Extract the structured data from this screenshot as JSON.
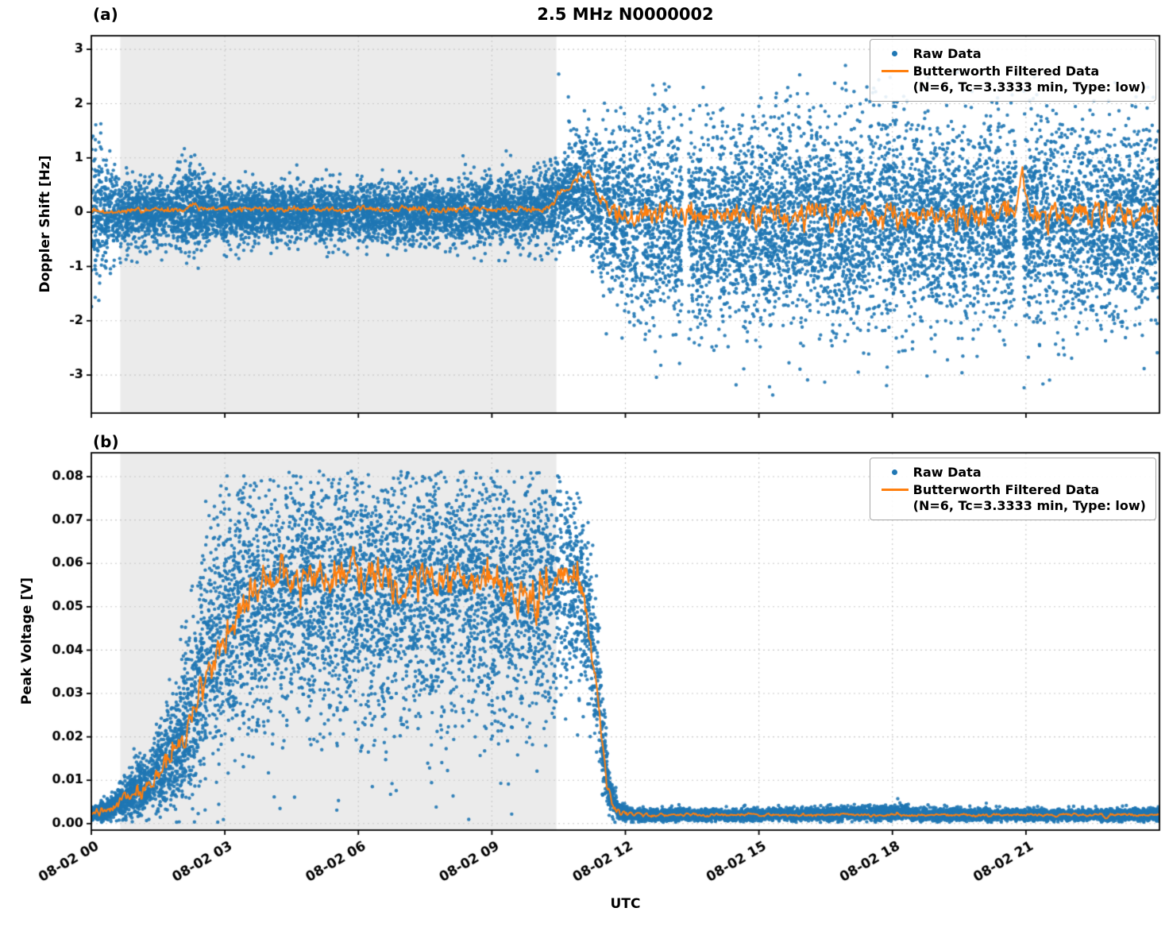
{
  "chart_data": {
    "type": "scatter+line",
    "title": "2.5 MHz N0000002",
    "xlabel": "UTC",
    "x_axis": {
      "lim_hours": [
        0,
        24
      ],
      "tick_hours": [
        0,
        3,
        6,
        9,
        12,
        15,
        18,
        21
      ],
      "tick_labels": [
        "08-02 00",
        "08-02 03",
        "08-02 06",
        "08-02 09",
        "08-02 12",
        "08-02 15",
        "08-02 18",
        "08-02 21"
      ]
    },
    "shaded_region_hours": [
      0.65,
      10.45
    ],
    "legend": {
      "raw_label": "Raw Data",
      "filtered_label": "Butterworth Filtered Data",
      "filtered_params": "(N=6, Tc=3.3333 min, Type: low)"
    },
    "colors": {
      "raw": "#1f77b4",
      "filtered": "#ff7f0e",
      "shade": "#ebebeb",
      "grid": "#c8c8c8",
      "axis": "#000000"
    },
    "panels": [
      {
        "label": "(a)",
        "ylabel": "Doppler Shift [Hz]",
        "ylim": [
          -3.7,
          3.25
        ],
        "yticks": [
          3,
          2,
          1,
          0,
          -1,
          -2,
          -3
        ],
        "ytick_decimals": 0,
        "raw_scatter": {
          "seed": 42,
          "points_per_hour": 560,
          "outlier_fraction": 0.012,
          "outlier_mult": 1.9,
          "clamp": [
            -3.38,
            3.06
          ],
          "gaps_hours": [
            [
              13.28,
              13.42
            ],
            [
              20.78,
              20.94
            ]
          ],
          "envelope_x_hours": [
            0,
            0.25,
            0.6,
            1.0,
            1.8,
            2.1,
            2.3,
            2.55,
            3.0,
            5.0,
            7.5,
            9.0,
            9.8,
            10.3,
            10.55,
            10.8,
            11.05,
            11.25,
            11.5,
            12.0,
            13.0,
            16.0,
            20.0,
            24.0
          ],
          "envelope_center": [
            0,
            0,
            0,
            0,
            0,
            0.05,
            0.12,
            0,
            0,
            0,
            0,
            0.02,
            0.05,
            0.12,
            0.3,
            0.45,
            0.55,
            0.35,
            0,
            -0.15,
            -0.18,
            -0.18,
            -0.18,
            -0.15
          ],
          "envelope_spread": [
            0.75,
            0.55,
            0.33,
            0.3,
            0.28,
            0.38,
            0.42,
            0.3,
            0.26,
            0.25,
            0.27,
            0.3,
            0.32,
            0.35,
            0.4,
            0.45,
            0.5,
            0.6,
            0.75,
            0.85,
            0.9,
            0.9,
            0.9,
            0.88
          ]
        },
        "filtered_line": {
          "seed": 99,
          "step_hours": 0.02,
          "clamp": [
            -3.3,
            3.0
          ],
          "trend_x_hours": [
            0,
            2.1,
            2.3,
            2.5,
            10.2,
            10.5,
            10.7,
            10.9,
            11.05,
            11.2,
            11.35,
            11.6,
            12.0,
            20.7,
            20.8,
            20.9,
            21.0,
            21.1,
            24.0
          ],
          "trend_y": [
            0,
            0.05,
            0.2,
            0.05,
            0.05,
            0.3,
            0.45,
            0.55,
            0.7,
            0.75,
            0.4,
            0.0,
            -0.05,
            -0.05,
            0.1,
            0.55,
            0.2,
            -0.05,
            -0.05
          ],
          "noise_amp_x_hours": [
            0,
            10.2,
            11.4,
            11.8,
            24
          ],
          "noise_amp_y": [
            0.05,
            0.06,
            0.12,
            0.22,
            0.22
          ]
        }
      },
      {
        "label": "(b)",
        "ylabel": "Peak Voltage [V]",
        "ylim": [
          -0.0015,
          0.0855
        ],
        "yticks": [
          0.08,
          0.07,
          0.06,
          0.05,
          0.04,
          0.03,
          0.02,
          0.01,
          0.0
        ],
        "ytick_decimals": 2,
        "raw_scatter": {
          "seed": 7,
          "points_per_hour": 560,
          "outlier_fraction": 0.008,
          "outlier_mult": 1.6,
          "clamp": [
            0.0003,
            0.0813
          ],
          "gaps_hours": [],
          "envelope_x_hours": [
            0,
            0.4,
            0.8,
            1.2,
            1.6,
            2.0,
            2.3,
            2.6,
            3.0,
            3.5,
            4.5,
            6.0,
            8.0,
            9.5,
            10.4,
            10.8,
            11.0,
            11.2,
            11.35,
            11.5,
            11.65,
            11.85,
            12.1,
            15.0,
            18.2,
            18.3,
            18.4,
            22.0,
            24.0
          ],
          "envelope_center": [
            0.002,
            0.0035,
            0.006,
            0.009,
            0.013,
            0.019,
            0.027,
            0.037,
            0.046,
            0.051,
            0.053,
            0.054,
            0.054,
            0.053,
            0.055,
            0.056,
            0.053,
            0.045,
            0.034,
            0.018,
            0.007,
            0.003,
            0.002,
            0.002,
            0.0025,
            0.003,
            0.002,
            0.002,
            0.002
          ],
          "envelope_spread": [
            0.0008,
            0.0015,
            0.0025,
            0.0035,
            0.005,
            0.008,
            0.011,
            0.013,
            0.014,
            0.0145,
            0.015,
            0.0152,
            0.015,
            0.0148,
            0.013,
            0.011,
            0.01,
            0.009,
            0.008,
            0.005,
            0.002,
            0.001,
            0.0007,
            0.0006,
            0.0008,
            0.001,
            0.0007,
            0.0006,
            0.0007
          ]
        },
        "filtered_line": {
          "seed": 123,
          "step_hours": 0.02,
          "clamp": [
            0.0012,
            0.08
          ],
          "trend_x_hours": [
            0,
            0.5,
            1.0,
            1.5,
            2.0,
            2.5,
            3.0,
            3.5,
            4.0,
            5.0,
            6.0,
            7.0,
            8.0,
            9.0,
            10.0,
            10.5,
            10.9,
            11.1,
            11.3,
            11.45,
            11.6,
            11.8,
            12.0,
            15.0,
            18.0,
            22.7,
            22.8,
            22.9,
            24.0
          ],
          "trend_y": [
            0.002,
            0.004,
            0.007,
            0.011,
            0.018,
            0.032,
            0.044,
            0.053,
            0.055,
            0.057,
            0.058,
            0.056,
            0.057,
            0.055,
            0.054,
            0.057,
            0.056,
            0.05,
            0.035,
            0.022,
            0.008,
            0.003,
            0.002,
            0.002,
            0.002,
            0.002,
            0.0012,
            0.002,
            0.002
          ],
          "noise_amp_x_hours": [
            0,
            1.5,
            2.5,
            3.5,
            10.6,
            11.2,
            11.8,
            12.2,
            24
          ],
          "noise_amp_y": [
            0.0008,
            0.002,
            0.004,
            0.0045,
            0.0045,
            0.003,
            0.001,
            0.0003,
            0.0003
          ]
        }
      }
    ]
  }
}
